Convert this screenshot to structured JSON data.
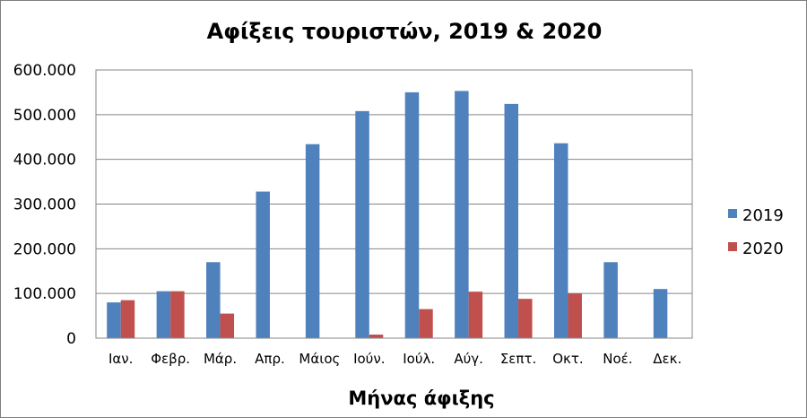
{
  "chart_data": {
    "type": "bar",
    "title": "Αφίξεις τουριστών, 2019 & 2020",
    "xlabel": "Μήνας άφιξης",
    "ylabel": "",
    "categories": [
      "Ιαν.",
      "Φεβρ.",
      "Μάρ.",
      "Απρ.",
      "Μάιος",
      "Ιούν.",
      "Ιούλ.",
      "Αύγ.",
      "Σεπτ.",
      "Οκτ.",
      "Νοέ.",
      "Δεκ."
    ],
    "series": [
      {
        "name": "2019",
        "color": "#4f81bd",
        "values": [
          80000,
          105000,
          170000,
          328000,
          434000,
          508000,
          550000,
          553000,
          524000,
          436000,
          170000,
          110000
        ]
      },
      {
        "name": "2020",
        "color": "#c0504d",
        "values": [
          85000,
          105000,
          55000,
          0,
          0,
          8000,
          65000,
          104000,
          88000,
          100000,
          0,
          0
        ]
      }
    ],
    "ylim": [
      0,
      600000
    ],
    "yticks": [
      0,
      100000,
      200000,
      300000,
      400000,
      500000,
      600000
    ],
    "ytick_labels": [
      "0",
      "100.000",
      "200.000",
      "300.000",
      "400.000",
      "500.000",
      "600.000"
    ],
    "grid": true,
    "legend": "right"
  }
}
